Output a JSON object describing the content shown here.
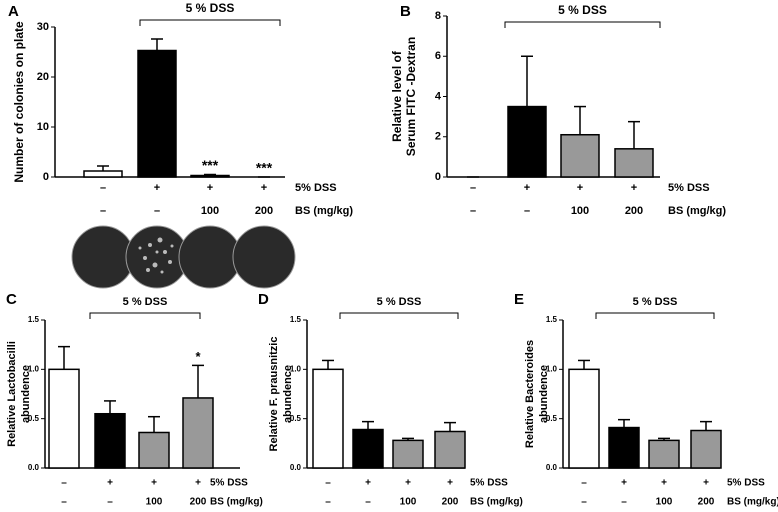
{
  "chart_data": [
    {
      "type": "bar",
      "panel": "A",
      "bracket_label": "5 % DSS",
      "ylabel": [
        "Number of colonies on plate"
      ],
      "ylim": [
        0,
        30
      ],
      "yticks": [
        0,
        10,
        20,
        30
      ],
      "values": [
        1.2,
        25.3,
        0.3,
        0
      ],
      "errors": [
        1.0,
        2.3,
        0.2,
        0
      ],
      "colors": [
        "#ffffff",
        "#000000",
        "#999999",
        "#999999"
      ],
      "annotations": [
        null,
        null,
        "***",
        "***"
      ],
      "rows": [
        {
          "label": "5% DSS",
          "values": [
            "–",
            "+",
            "+",
            "+"
          ]
        },
        {
          "label": "BS (mg/kg)",
          "values": [
            "–",
            "–",
            "100",
            "200"
          ]
        }
      ]
    },
    {
      "type": "bar",
      "panel": "B",
      "bracket_label": "5 % DSS",
      "ylabel": [
        "Relative level of",
        "Serum  FITC -Dextran"
      ],
      "ylim": [
        0,
        8
      ],
      "yticks": [
        0,
        2,
        4,
        6,
        8
      ],
      "values": [
        0,
        3.5,
        2.1,
        1.4
      ],
      "errors": [
        0,
        2.5,
        1.4,
        1.35
      ],
      "colors": [
        "#ffffff",
        "#000000",
        "#999999",
        "#999999"
      ],
      "annotations": [
        null,
        null,
        null,
        null
      ],
      "rows": [
        {
          "label": "5% DSS",
          "values": [
            "–",
            "+",
            "+",
            "+"
          ]
        },
        {
          "label": "BS (mg/kg)",
          "values": [
            "–",
            "–",
            "100",
            "200"
          ]
        }
      ]
    },
    {
      "type": "bar",
      "panel": "C",
      "bracket_label": "5 % DSS",
      "ylabel": [
        "Relative Lactobacilli",
        "abundence"
      ],
      "ylim": [
        0,
        1.5
      ],
      "yticks": [
        {
          "value": 0,
          "label": "0.0"
        },
        0.5,
        {
          "value": 1,
          "label": "1.0"
        },
        1.5
      ],
      "values": [
        1.0,
        0.55,
        0.36,
        0.71
      ],
      "errors": [
        0.23,
        0.13,
        0.16,
        0.33
      ],
      "colors": [
        "#ffffff",
        "#000000",
        "#999999",
        "#999999"
      ],
      "annotations": [
        null,
        null,
        null,
        "*"
      ],
      "rows": [
        {
          "label": "5% DSS",
          "values": [
            "–",
            "+",
            "+",
            "+"
          ]
        },
        {
          "label": "BS (mg/kg)",
          "values": [
            "–",
            "–",
            "100",
            "200"
          ]
        }
      ]
    },
    {
      "type": "bar",
      "panel": "D",
      "bracket_label": "5 % DSS",
      "ylabel": [
        "Relative F. prausnitzic",
        "abundence"
      ],
      "ylim": [
        0,
        1.5
      ],
      "yticks": [
        {
          "value": 0,
          "label": "0.0"
        },
        0.5,
        {
          "value": 1,
          "label": "1.0"
        },
        1.5
      ],
      "values": [
        1.0,
        0.39,
        0.28,
        0.37
      ],
      "errors": [
        0.09,
        0.08,
        0.02,
        0.09
      ],
      "colors": [
        "#ffffff",
        "#000000",
        "#999999",
        "#999999"
      ],
      "annotations": [
        null,
        null,
        null,
        null
      ],
      "rows": [
        {
          "label": "5% DSS",
          "values": [
            "–",
            "+",
            "+",
            "+"
          ]
        },
        {
          "label": "BS (mg/kg)",
          "values": [
            "–",
            "–",
            "100",
            "200"
          ]
        }
      ]
    },
    {
      "type": "bar",
      "panel": "E",
      "bracket_label": "5 % DSS",
      "ylabel": [
        "Relative Bacteroides",
        "abundence"
      ],
      "ylim": [
        0,
        1.5
      ],
      "yticks": [
        {
          "value": 0,
          "label": "0.0"
        },
        0.5,
        {
          "value": 1,
          "label": "1.0"
        },
        1.5
      ],
      "values": [
        1.0,
        0.41,
        0.28,
        0.38
      ],
      "errors": [
        0.09,
        0.08,
        0.02,
        0.09
      ],
      "colors": [
        "#ffffff",
        "#000000",
        "#999999",
        "#999999"
      ],
      "annotations": [
        null,
        null,
        null,
        null
      ],
      "rows": [
        {
          "label": "5% DSS",
          "values": [
            "–",
            "+",
            "+",
            "+"
          ]
        },
        {
          "label": "BS (mg/kg)",
          "values": [
            "–",
            "–",
            "100",
            "200"
          ]
        }
      ]
    }
  ]
}
